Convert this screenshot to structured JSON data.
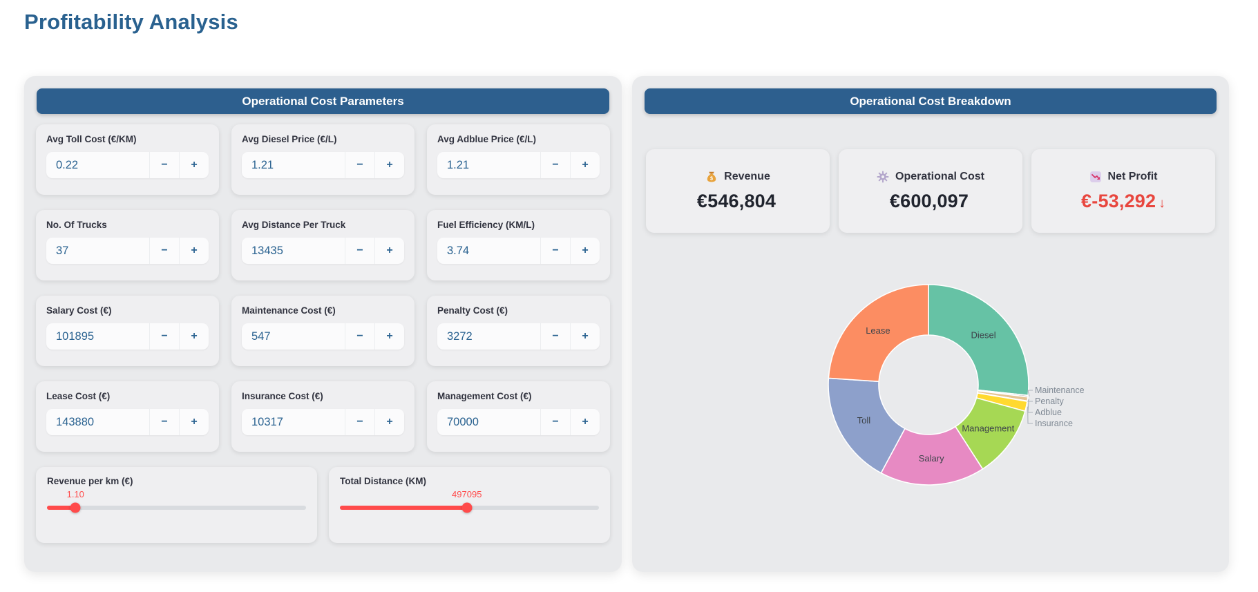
{
  "page": {
    "title": "Profitability Analysis"
  },
  "parameters_panel": {
    "header": "Operational Cost Parameters",
    "stepper_minus": "−",
    "stepper_plus": "+",
    "inputs": [
      {
        "label": "Avg Toll Cost (€/KM)",
        "value": "0.22"
      },
      {
        "label": "Avg Diesel Price (€/L)",
        "value": "1.21"
      },
      {
        "label": "Avg Adblue Price (€/L)",
        "value": "1.21"
      },
      {
        "label": "No. Of Trucks",
        "value": "37"
      },
      {
        "label": "Avg Distance Per Truck",
        "value": "13435"
      },
      {
        "label": "Fuel Efficiency (KM/L)",
        "value": "3.74"
      },
      {
        "label": "Salary Cost (€)",
        "value": "101895"
      },
      {
        "label": "Maintenance Cost (€)",
        "value": "547"
      },
      {
        "label": "Penalty Cost (€)",
        "value": "3272"
      },
      {
        "label": "Lease Cost (€)",
        "value": "143880"
      },
      {
        "label": "Insurance Cost (€)",
        "value": "10317"
      },
      {
        "label": "Management Cost (€)",
        "value": "70000"
      }
    ],
    "sliders": [
      {
        "label": "Revenue per km (€)",
        "value": "1.10",
        "fraction": 0.11
      },
      {
        "label": "Total Distance (KM)",
        "value": "497095",
        "fraction": 0.49
      }
    ]
  },
  "breakdown_panel": {
    "header": "Operational Cost Breakdown",
    "metrics": [
      {
        "icon": "money-bag-icon",
        "label": "Revenue",
        "value": "€546,804",
        "arrow": "",
        "tone": "neutral"
      },
      {
        "icon": "gear-icon",
        "label": "Operational Cost",
        "value": "€600,097",
        "arrow": "",
        "tone": "neutral"
      },
      {
        "icon": "chart-decreasing-icon",
        "label": "Net Profit",
        "value": "€-53,292",
        "arrow": "↓",
        "tone": "negative"
      }
    ]
  },
  "chart_data": {
    "type": "pie",
    "title": "Operational Cost Breakdown",
    "hole": 0.5,
    "direction": "clockwise",
    "start_angle_deg": 0,
    "legend": "none",
    "units": "percent of total operational cost (estimated from arc angles)",
    "slices": [
      {
        "label": "Diesel",
        "percent": 26.7,
        "color": "#66c2a5",
        "label_position": "inside"
      },
      {
        "label": "Maintenance",
        "percent": 0.25,
        "color": "#b3b3b3",
        "label_position": "outside"
      },
      {
        "label": "Penalty",
        "percent": 0.65,
        "color": "#e5c494",
        "label_position": "outside"
      },
      {
        "label": "Adblue",
        "percent": 0.05,
        "color": "#66c2a5",
        "label_position": "outside"
      },
      {
        "label": "Insurance",
        "percent": 1.6,
        "color": "#ffd92f",
        "label_position": "outside"
      },
      {
        "label": "Management",
        "percent": 11.65,
        "color": "#a6d854",
        "label_position": "inside"
      },
      {
        "label": "Salary",
        "percent": 16.95,
        "color": "#e78ac3",
        "label_position": "inside"
      },
      {
        "label": "Toll",
        "percent": 18.2,
        "color": "#8da0cb",
        "label_position": "inside"
      },
      {
        "label": "Lease",
        "percent": 23.95,
        "color": "#fc8d62",
        "label_position": "inside"
      }
    ]
  },
  "colors": {
    "header_bar_blue": "#2d5f8e",
    "title_blue": "#29618f",
    "input_value_blue": "#2b6391",
    "negative_red": "#e8463e",
    "slider_red": "#ff4b4b"
  }
}
